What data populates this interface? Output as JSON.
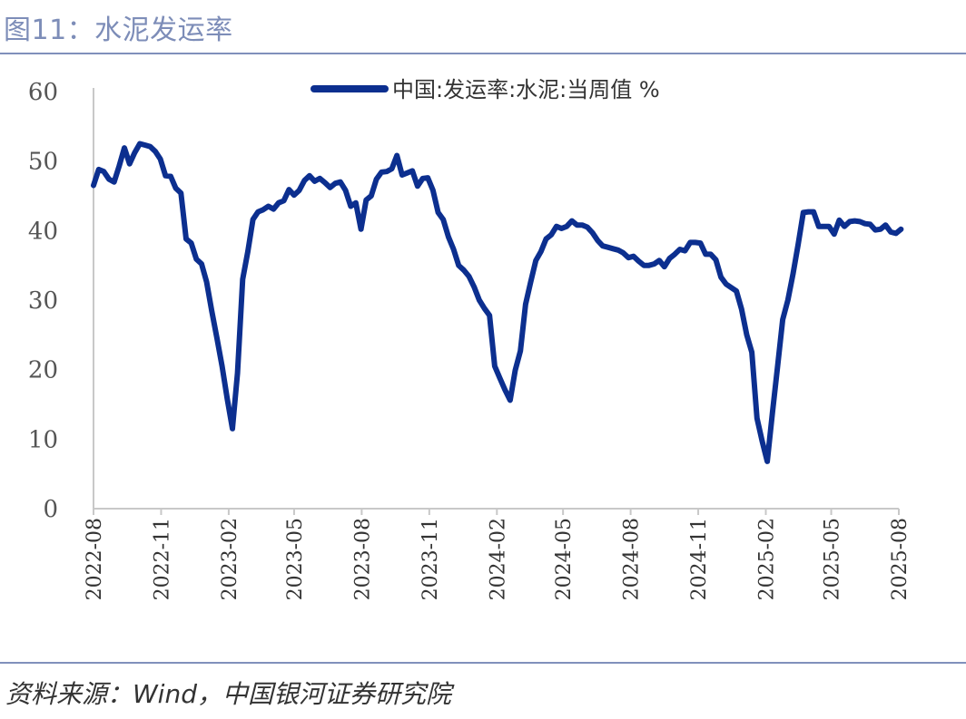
{
  "header": {
    "title": "图11：水泥发运率"
  },
  "footer": {
    "source": "资料来源：Wind，中国银河证券研究院"
  },
  "colors": {
    "series": "#0c2f8f",
    "axis": "#c8c8c8",
    "rule": "#8090bb",
    "title": "#7d8db8"
  },
  "chart_data": {
    "type": "line",
    "title": "",
    "xlabel": "",
    "ylabel": "",
    "ylim": [
      0,
      60
    ],
    "y_ticks": [
      "0",
      "10",
      "20",
      "30",
      "40",
      "50",
      "60"
    ],
    "x_ticks": [
      "2022-08",
      "2022-11",
      "2023-02",
      "2023-05",
      "2023-08",
      "2023-11",
      "2024-02",
      "2024-05",
      "2024-08",
      "2024-11",
      "2025-02",
      "2025-05",
      "2025-08"
    ],
    "grid": false,
    "legend_position": "top-center",
    "series": [
      {
        "name": "中国:发运率:水泥:当周值 %",
        "x": [
          "2022-08-01",
          "2022-08-08",
          "2022-08-15",
          "2022-08-22",
          "2022-08-29",
          "2022-09-05",
          "2022-09-12",
          "2022-09-19",
          "2022-09-26",
          "2022-10-03",
          "2022-10-10",
          "2022-10-17",
          "2022-10-24",
          "2022-10-31",
          "2022-11-07",
          "2022-11-14",
          "2022-11-21",
          "2022-11-28",
          "2022-12-05",
          "2022-12-12",
          "2022-12-19",
          "2022-12-26",
          "2023-01-02",
          "2023-01-09",
          "2023-01-16",
          "2023-01-23",
          "2023-01-30",
          "2023-02-06",
          "2023-02-13",
          "2023-02-20",
          "2023-02-27",
          "2023-03-06",
          "2023-03-13",
          "2023-03-20",
          "2023-03-27",
          "2023-04-03",
          "2023-04-10",
          "2023-04-17",
          "2023-04-24",
          "2023-05-01",
          "2023-05-08",
          "2023-05-15",
          "2023-05-22",
          "2023-05-29",
          "2023-06-05",
          "2023-06-12",
          "2023-06-19",
          "2023-06-26",
          "2023-07-03",
          "2023-07-10",
          "2023-07-17",
          "2023-07-24",
          "2023-07-31",
          "2023-08-07",
          "2023-08-14",
          "2023-08-21",
          "2023-08-28",
          "2023-09-04",
          "2023-09-11",
          "2023-09-18",
          "2023-09-25",
          "2023-10-02",
          "2023-10-09",
          "2023-10-16",
          "2023-10-23",
          "2023-10-30",
          "2023-11-06",
          "2023-11-13",
          "2023-11-20",
          "2023-11-27",
          "2023-12-04",
          "2023-12-11",
          "2023-12-18",
          "2023-12-25",
          "2024-01-01",
          "2024-01-08",
          "2024-01-15",
          "2024-01-22",
          "2024-01-29",
          "2024-02-05",
          "2024-02-12",
          "2024-02-19",
          "2024-02-26",
          "2024-03-04",
          "2024-03-11",
          "2024-03-18",
          "2024-03-25",
          "2024-04-01",
          "2024-04-08",
          "2024-04-15",
          "2024-04-22",
          "2024-04-29",
          "2024-05-06",
          "2024-05-13",
          "2024-05-20",
          "2024-05-27",
          "2024-06-03",
          "2024-06-10",
          "2024-06-17",
          "2024-06-24",
          "2024-07-01",
          "2024-07-08",
          "2024-07-15",
          "2024-07-22",
          "2024-07-29",
          "2024-08-05",
          "2024-08-12",
          "2024-08-19",
          "2024-08-26",
          "2024-09-02",
          "2024-09-09",
          "2024-09-16",
          "2024-09-23",
          "2024-09-30",
          "2024-10-07",
          "2024-10-14",
          "2024-10-21",
          "2024-10-28",
          "2024-11-04",
          "2024-11-11",
          "2024-11-18",
          "2024-11-25",
          "2024-12-02",
          "2024-12-09",
          "2024-12-16",
          "2024-12-23",
          "2024-12-30",
          "2025-01-06",
          "2025-01-13",
          "2025-01-20",
          "2025-01-27",
          "2025-02-03",
          "2025-02-10",
          "2025-02-17",
          "2025-02-24",
          "2025-03-03",
          "2025-03-10",
          "2025-03-17",
          "2025-03-24",
          "2025-03-31",
          "2025-04-07",
          "2025-04-14",
          "2025-04-21",
          "2025-04-28",
          "2025-05-05",
          "2025-05-12",
          "2025-05-19",
          "2025-05-26",
          "2025-06-02",
          "2025-06-09",
          "2025-06-16",
          "2025-06-23",
          "2025-06-30",
          "2025-07-07",
          "2025-07-14",
          "2025-07-21",
          "2025-07-28",
          "2025-08-04"
        ],
        "values": [
          46.5,
          48.8,
          48.5,
          47.4,
          47.0,
          49.3,
          51.9,
          49.6,
          51.2,
          52.5,
          52.3,
          52.1,
          51.4,
          50.3,
          47.9,
          47.8,
          46.1,
          45.4,
          38.8,
          38.2,
          35.9,
          35.2,
          32.6,
          28.4,
          24.5,
          20.5,
          15.8,
          11.5,
          19.5,
          33.0,
          37.0,
          41.6,
          42.7,
          43.0,
          43.5,
          43.1,
          44.0,
          44.3,
          45.9,
          45.1,
          45.8,
          47.2,
          47.9,
          47.1,
          47.5,
          46.9,
          46.2,
          46.8,
          47.0,
          45.8,
          43.5,
          44.0,
          40.2,
          44.4,
          45.0,
          47.4,
          48.4,
          48.5,
          48.9,
          50.8,
          48.0,
          48.3,
          48.6,
          46.4,
          47.5,
          47.6,
          45.8,
          42.6,
          41.6,
          39.1,
          37.3,
          35.0,
          34.3,
          33.4,
          31.9,
          30.0,
          28.8,
          27.8,
          20.5,
          18.8,
          17.1,
          15.6,
          19.9,
          22.7,
          29.4,
          32.6,
          35.7,
          37.0,
          38.8,
          39.4,
          40.6,
          40.3,
          40.6,
          41.4,
          40.8,
          40.8,
          40.5,
          39.7,
          38.6,
          37.8,
          37.6,
          37.4,
          37.2,
          36.8,
          36.1,
          36.3,
          35.6,
          35.0,
          35.0,
          35.2,
          35.7,
          34.8,
          36.0,
          36.6,
          37.3,
          37.1,
          38.3,
          38.3,
          38.2,
          36.6,
          36.6,
          35.8,
          33.3,
          32.3,
          31.8,
          31.3,
          28.7,
          25.0,
          22.5,
          13.0,
          9.7,
          6.8,
          13.8,
          20.5,
          27.2,
          30.0,
          33.8,
          38.0,
          42.6,
          42.7,
          42.7,
          40.6,
          40.6,
          40.6,
          39.5,
          41.5,
          40.6,
          41.3,
          41.4,
          41.3,
          41.0,
          40.9,
          40.1,
          40.2,
          40.8,
          39.8,
          39.6,
          40.2
        ]
      }
    ]
  }
}
